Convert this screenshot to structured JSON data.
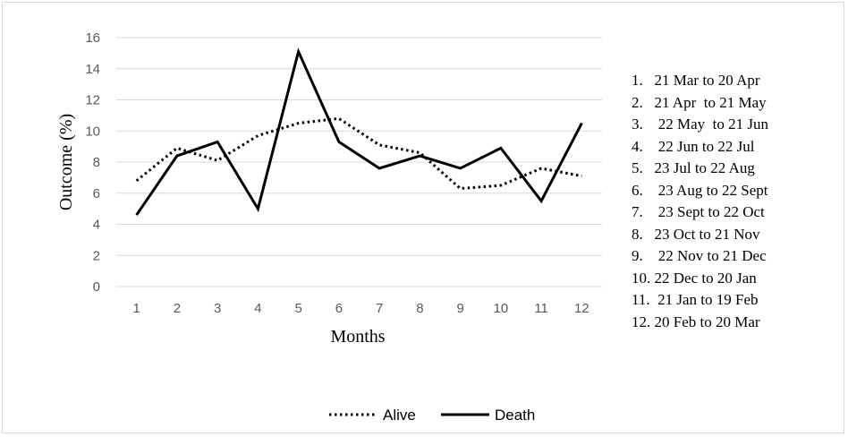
{
  "chart_data": {
    "type": "line",
    "title": "",
    "xlabel": "Months",
    "ylabel": "Outcome (%)",
    "categories": [
      "1",
      "2",
      "3",
      "4",
      "5",
      "6",
      "7",
      "8",
      "9",
      "10",
      "11",
      "12"
    ],
    "ylim": [
      0,
      16
    ],
    "yticks": [
      "0",
      "2",
      "4",
      "6",
      "8",
      "10",
      "12",
      "14",
      "16"
    ],
    "grid": true,
    "legend_position": "bottom",
    "series": [
      {
        "name": "Alive",
        "style": "dotted",
        "color": "#000000",
        "values": [
          6.8,
          8.9,
          8.1,
          9.7,
          10.5,
          10.8,
          9.1,
          8.6,
          6.3,
          6.5,
          7.6,
          7.1
        ]
      },
      {
        "name": "Death",
        "style": "solid",
        "color": "#000000",
        "values": [
          4.6,
          8.4,
          9.3,
          5.0,
          15.1,
          9.3,
          7.6,
          8.4,
          7.6,
          8.9,
          5.5,
          10.5
        ]
      }
    ]
  },
  "month_key": [
    "1.   21 Mar to 20 Apr",
    "2.   21 Apr  to 21 May",
    "3.    22 May  to 21 Jun",
    "4.    22 Jun to 22 Jul",
    "5.   23 Jul to 22 Aug",
    "6.    23 Aug to 22 Sept",
    "7.    23 Sept to 22 Oct",
    "8.   23 Oct to 21 Nov",
    "9.    22 Nov to 21 Dec",
    "10. 22 Dec to 20 Jan",
    "11.  21 Jan to 19 Feb",
    "12. 20 Feb to 20 Mar"
  ]
}
